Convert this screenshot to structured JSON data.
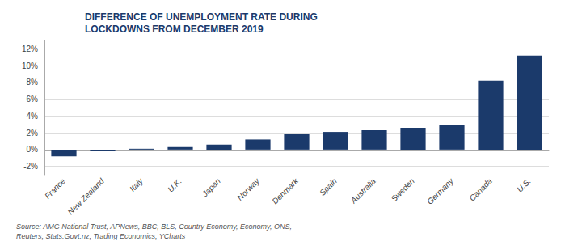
{
  "chart_data": {
    "type": "bar",
    "title": "DIFFERENCE OF UNEMPLOYMENT RATE DURING\nLOCKDOWNS FROM DECEMBER 2019",
    "categories": [
      "France",
      "New Zealand",
      "Italy",
      "U.K.",
      "Japan",
      "Norway",
      "Denmark",
      "Spain",
      "Australia",
      "Sweden",
      "Germany",
      "Canada",
      "U.S."
    ],
    "values": [
      -0.8,
      -0.1,
      0.1,
      0.3,
      0.6,
      1.2,
      1.9,
      2.1,
      2.3,
      2.6,
      2.9,
      8.2,
      11.2
    ],
    "color": "#1b3a6b",
    "ylim": [
      -3,
      13
    ],
    "yticks": [
      {
        "value": -2,
        "label": "-2%"
      },
      {
        "value": 0,
        "label": "0%"
      },
      {
        "value": 2,
        "label": "2%"
      },
      {
        "value": 4,
        "label": "4%"
      },
      {
        "value": 6,
        "label": "6%"
      },
      {
        "value": 8,
        "label": "8%"
      },
      {
        "value": 10,
        "label": "10%"
      },
      {
        "value": 12,
        "label": "12%"
      }
    ],
    "grid": true,
    "annotations": [
      "Source: AMG National Trust, APNews, BBC, BLS, Country Economy, Economy, ONS,\nReuters, Stats.Govt.nz, Trading Economics, YCharts"
    ]
  }
}
